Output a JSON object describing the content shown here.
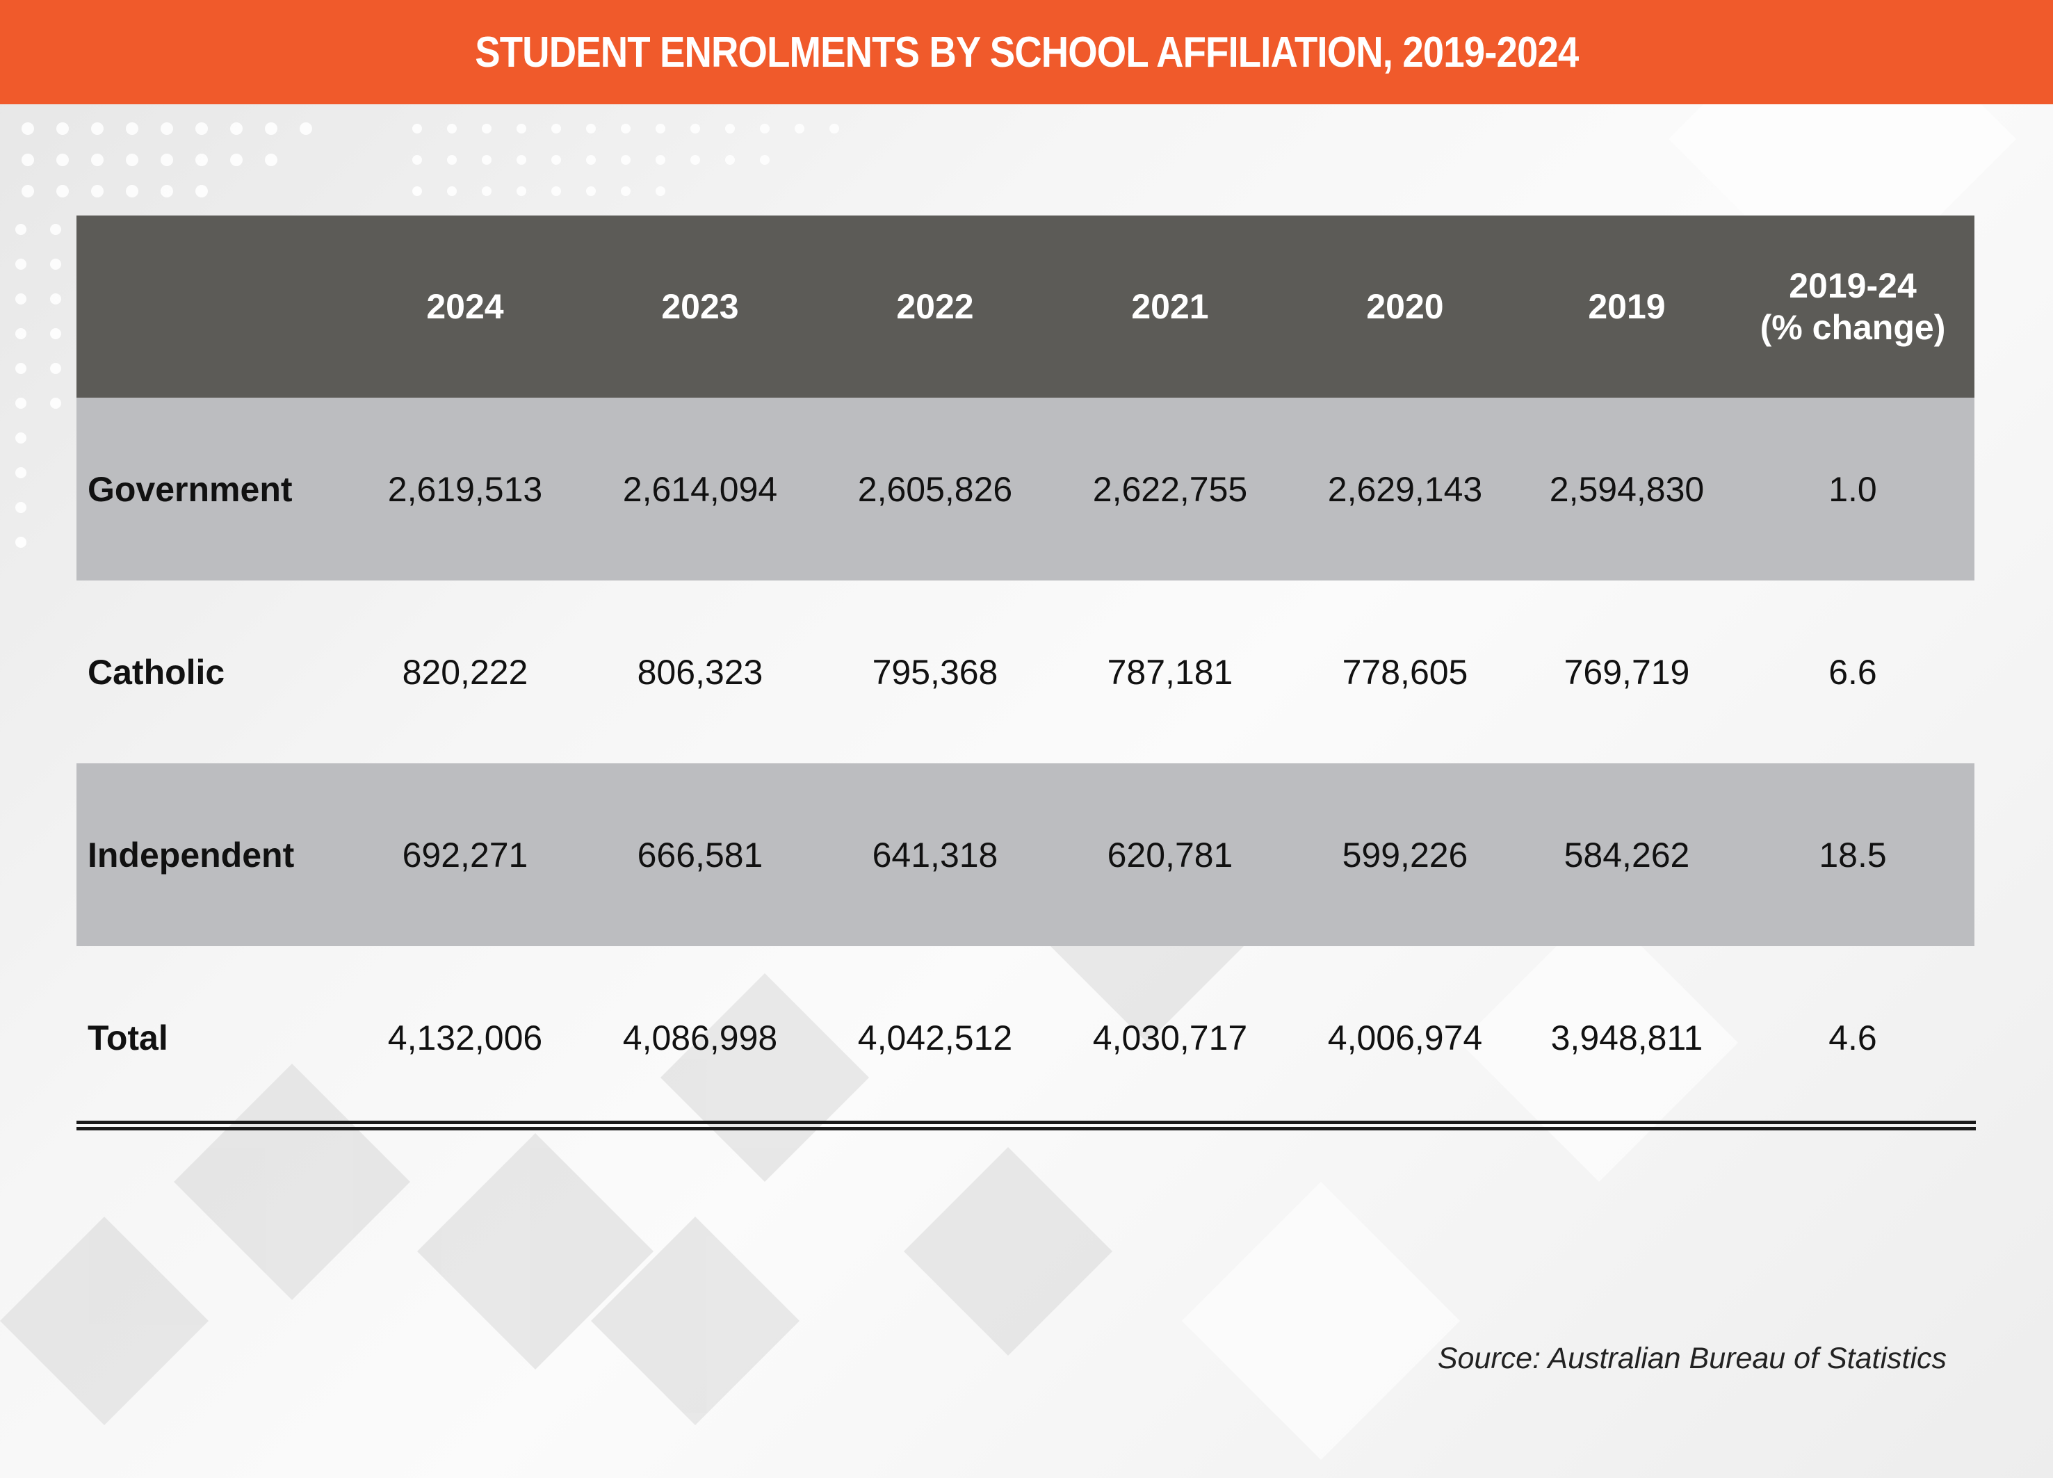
{
  "chart_data": {
    "type": "table",
    "title": "STUDENT ENROLMENTS BY SCHOOL AFFILIATION, 2019-2024",
    "columns": [
      "",
      "2024",
      "2023",
      "2022",
      "2021",
      "2020",
      "2019",
      "2019-24\n(% change)"
    ],
    "rows": [
      {
        "label": "Government",
        "values": [
          "2,619,513",
          "2,614,094",
          "2,605,826",
          "2,622,755",
          "2,629,143",
          "2,594,830",
          "1.0"
        ]
      },
      {
        "label": "Catholic",
        "values": [
          "820,222",
          "806,323",
          "795,368",
          "787,181",
          "778,605",
          "769,719",
          "6.6"
        ]
      },
      {
        "label": "Independent",
        "values": [
          "692,271",
          "666,581",
          "641,318",
          "620,781",
          "599,226",
          "584,262",
          "18.5"
        ]
      },
      {
        "label": "Total",
        "values": [
          "4,132,006",
          "4,086,998",
          "4,042,512",
          "4,030,717",
          "4,006,974",
          "3,948,811",
          "4.6"
        ]
      }
    ],
    "source": "Source: Australian Bureau of Statistics"
  },
  "header": {
    "change_line1": "2019-24",
    "change_line2": "(% change)"
  },
  "colors": {
    "title_bar": "#f05a2b",
    "header_row": "#5c5b57",
    "shaded_row": "#bcbdc0"
  }
}
